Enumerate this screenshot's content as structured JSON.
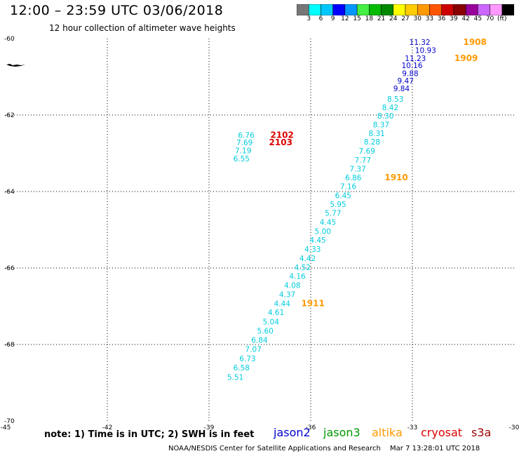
{
  "header": {
    "title": "12:00 – 23:59 UTC 03/06/2018",
    "subtitle": "12 hour collection of altimeter wave heights"
  },
  "colorbar": {
    "colors": [
      "#777777",
      "#00ffff",
      "#00c8ff",
      "#0000ff",
      "#0096ff",
      "#44ee44",
      "#00bb00",
      "#008800",
      "#ffff00",
      "#ffcc00",
      "#ff9900",
      "#ff5500",
      "#cc0000",
      "#880000",
      "#990099",
      "#cc66ff",
      "#ff99ff",
      "#000000"
    ],
    "labels": [
      "3",
      "6",
      "9",
      "12",
      "15",
      "18",
      "21",
      "24",
      "27",
      "30",
      "33",
      "36",
      "39",
      "42",
      "45",
      "70",
      "(ft)"
    ]
  },
  "axes": {
    "x_ticks": [
      "-45",
      "-42",
      "-39",
      "-36",
      "-33",
      "-30"
    ],
    "y_ticks": [
      "-60",
      "-62",
      "-64",
      "-66",
      "-68",
      "-70"
    ],
    "x_range": [
      -45,
      -30
    ],
    "y_range": [
      -70,
      -60
    ]
  },
  "colors": {
    "jason2": "#0000cc",
    "jason3": "#009900",
    "altika": "#ff9900",
    "cryosat": "#dd0000",
    "s3a": "#990000",
    "cyan": "#00ccdd",
    "grid": "#000000"
  },
  "observations": [
    {
      "v": "11.32",
      "lon": -32.47,
      "lat": -60.09,
      "sat": "jason2"
    },
    {
      "v": "10.93",
      "lon": -32.3,
      "lat": -60.3,
      "sat": "jason2"
    },
    {
      "v": "11.23",
      "lon": -32.6,
      "lat": -60.51,
      "sat": "jason2"
    },
    {
      "v": "10.16",
      "lon": -32.7,
      "lat": -60.7,
      "sat": "jason2"
    },
    {
      "v": "9.88",
      "lon": -32.82,
      "lat": -60.91,
      "sat": "jason2"
    },
    {
      "v": "9.47",
      "lon": -32.96,
      "lat": -61.1,
      "sat": "jason2"
    },
    {
      "v": "9.84",
      "lon": -33.08,
      "lat": -61.3,
      "sat": "jason2"
    },
    {
      "v": "8.53",
      "lon": -33.26,
      "lat": -61.58,
      "sat": "cyan"
    },
    {
      "v": "8.42",
      "lon": -33.41,
      "lat": -61.8,
      "sat": "cyan"
    },
    {
      "v": "8.30",
      "lon": -33.55,
      "lat": -62.02,
      "sat": "cyan"
    },
    {
      "v": "8.37",
      "lon": -33.68,
      "lat": -62.25,
      "sat": "cyan"
    },
    {
      "v": "8.31",
      "lon": -33.81,
      "lat": -62.48,
      "sat": "cyan"
    },
    {
      "v": "8.28",
      "lon": -33.95,
      "lat": -62.7,
      "sat": "cyan"
    },
    {
      "v": "7.69",
      "lon": -34.1,
      "lat": -62.94,
      "sat": "cyan"
    },
    {
      "v": "7.77",
      "lon": -34.22,
      "lat": -63.17,
      "sat": "cyan"
    },
    {
      "v": "7.37",
      "lon": -34.37,
      "lat": -63.4,
      "sat": "cyan"
    },
    {
      "v": "6.86",
      "lon": -34.5,
      "lat": -63.63,
      "sat": "cyan"
    },
    {
      "v": "7.16",
      "lon": -34.65,
      "lat": -63.86,
      "sat": "cyan"
    },
    {
      "v": "6.45",
      "lon": -34.8,
      "lat": -64.1,
      "sat": "cyan"
    },
    {
      "v": "5.95",
      "lon": -34.95,
      "lat": -64.33,
      "sat": "cyan"
    },
    {
      "v": "5.77",
      "lon": -35.1,
      "lat": -64.56,
      "sat": "cyan"
    },
    {
      "v": "4.45",
      "lon": -35.25,
      "lat": -64.8,
      "sat": "cyan"
    },
    {
      "v": "5.00",
      "lon": -35.4,
      "lat": -65.04,
      "sat": "cyan"
    },
    {
      "v": "4.45",
      "lon": -35.55,
      "lat": -65.27,
      "sat": "cyan"
    },
    {
      "v": "4.33",
      "lon": -35.7,
      "lat": -65.5,
      "sat": "cyan"
    },
    {
      "v": "4.42",
      "lon": -35.85,
      "lat": -65.74,
      "sat": "cyan"
    },
    {
      "v": "4.52",
      "lon": -36.0,
      "lat": -65.98,
      "sat": "cyan"
    },
    {
      "v": "4.16",
      "lon": -36.15,
      "lat": -66.21,
      "sat": "cyan"
    },
    {
      "v": "4.08",
      "lon": -36.3,
      "lat": -66.45,
      "sat": "cyan"
    },
    {
      "v": "4.37",
      "lon": -36.45,
      "lat": -66.69,
      "sat": "cyan"
    },
    {
      "v": "4.44",
      "lon": -36.6,
      "lat": -66.93,
      "sat": "cyan"
    },
    {
      "v": "4.61",
      "lon": -36.78,
      "lat": -67.16,
      "sat": "cyan"
    },
    {
      "v": "5.04",
      "lon": -36.93,
      "lat": -67.4,
      "sat": "cyan"
    },
    {
      "v": "5.60",
      "lon": -37.1,
      "lat": -67.64,
      "sat": "cyan"
    },
    {
      "v": "6.84",
      "lon": -37.27,
      "lat": -67.88,
      "sat": "cyan"
    },
    {
      "v": "7.07",
      "lon": -37.45,
      "lat": -68.12,
      "sat": "cyan"
    },
    {
      "v": "6.73",
      "lon": -37.62,
      "lat": -68.37,
      "sat": "cyan"
    },
    {
      "v": "6.58",
      "lon": -37.8,
      "lat": -68.61,
      "sat": "cyan"
    },
    {
      "v": "5.51",
      "lon": -37.98,
      "lat": -68.85,
      "sat": "cyan"
    },
    {
      "v": "6.76",
      "lon": -37.66,
      "lat": -62.52,
      "sat": "cyan"
    },
    {
      "v": "7.69",
      "lon": -37.71,
      "lat": -62.72,
      "sat": "cyan"
    },
    {
      "v": "7.19",
      "lon": -37.75,
      "lat": -62.93,
      "sat": "cyan"
    },
    {
      "v": "6.55",
      "lon": -37.8,
      "lat": -63.14,
      "sat": "cyan"
    }
  ],
  "track_labels": [
    {
      "text": "1908",
      "lon": -31.5,
      "lat": -60.09,
      "sat": "altika"
    },
    {
      "text": "1909",
      "lon": -31.76,
      "lat": -60.51,
      "sat": "altika"
    },
    {
      "text": "1910",
      "lon": -33.82,
      "lat": -63.63,
      "sat": "altika"
    },
    {
      "text": "2102",
      "lon": -37.19,
      "lat": -62.52,
      "sat": "cryosat"
    },
    {
      "text": "2103",
      "lon": -37.23,
      "lat": -62.72,
      "sat": "cryosat"
    },
    {
      "text": "1911",
      "lon": -36.28,
      "lat": -66.93,
      "sat": "altika"
    }
  ],
  "footer": {
    "note": "note: 1) Time is in UTC; 2) SWH is in feet",
    "legend": [
      {
        "name": "jason2",
        "color": "#0000cc"
      },
      {
        "name": "jason3",
        "color": "#009900"
      },
      {
        "name": "altika",
        "color": "#ff9900"
      },
      {
        "name": "cryosat",
        "color": "#dd0000"
      },
      {
        "name": "s3a",
        "color": "#990000"
      }
    ],
    "credit": "NOAA/NESDIS Center for Satellite Applications and Research",
    "timestamp": "Mar  7 13:28:01 UTC 2018"
  }
}
